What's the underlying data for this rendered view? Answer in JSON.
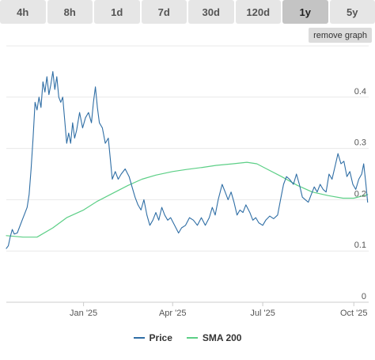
{
  "tabs": [
    {
      "label": "4h",
      "active": false
    },
    {
      "label": "8h",
      "active": false
    },
    {
      "label": "1d",
      "active": false
    },
    {
      "label": "7d",
      "active": false
    },
    {
      "label": "30d",
      "active": false
    },
    {
      "label": "120d",
      "active": false
    },
    {
      "label": "1y",
      "active": true
    },
    {
      "label": "5y",
      "active": false
    }
  ],
  "remove_graph_label": "remove graph",
  "colors": {
    "price": "#2f6ea5",
    "sma": "#5ccf86",
    "grid": "#e8e8e8"
  },
  "chart_data": {
    "type": "line",
    "x_type": "date",
    "x_ticks": [
      {
        "date": "2025-01-01",
        "label": "Jan '25"
      },
      {
        "date": "2025-04-01",
        "label": "Apr '25"
      },
      {
        "date": "2025-07-01",
        "label": "Jul '25"
      },
      {
        "date": "2025-10-01",
        "label": "Oct '25"
      }
    ],
    "y_ticks": [
      0,
      0.1,
      0.2,
      0.3,
      0.4
    ],
    "y_tick_labels": [
      "0",
      "0.1",
      "0.2",
      "0.3",
      "0.4"
    ],
    "xlim": [
      "2024-10-15",
      "2025-10-16"
    ],
    "ylim": [
      0,
      0.5
    ],
    "y_axis_side": "right",
    "grid": true,
    "legend_position": "bottom",
    "series": [
      {
        "name": "Price",
        "color": "#2f6ea5",
        "points": [
          [
            "2024-10-15",
            0.105
          ],
          [
            "2024-10-17",
            0.11
          ],
          [
            "2024-10-19",
            0.128
          ],
          [
            "2024-10-21",
            0.142
          ],
          [
            "2024-10-23",
            0.133
          ],
          [
            "2024-10-26",
            0.135
          ],
          [
            "2024-10-28",
            0.145
          ],
          [
            "2024-10-31",
            0.16
          ],
          [
            "2024-11-03",
            0.175
          ],
          [
            "2024-11-05",
            0.185
          ],
          [
            "2024-11-07",
            0.21
          ],
          [
            "2024-11-09",
            0.26
          ],
          [
            "2024-11-11",
            0.32
          ],
          [
            "2024-11-13",
            0.39
          ],
          [
            "2024-11-15",
            0.375
          ],
          [
            "2024-11-17",
            0.4
          ],
          [
            "2024-11-19",
            0.38
          ],
          [
            "2024-11-21",
            0.43
          ],
          [
            "2024-11-23",
            0.41
          ],
          [
            "2024-11-25",
            0.44
          ],
          [
            "2024-11-27",
            0.405
          ],
          [
            "2024-11-29",
            0.425
          ],
          [
            "2024-12-01",
            0.45
          ],
          [
            "2024-12-03",
            0.415
          ],
          [
            "2024-12-05",
            0.44
          ],
          [
            "2024-12-07",
            0.4
          ],
          [
            "2024-12-09",
            0.39
          ],
          [
            "2024-12-11",
            0.4
          ],
          [
            "2024-12-13",
            0.355
          ],
          [
            "2024-12-15",
            0.31
          ],
          [
            "2024-12-17",
            0.33
          ],
          [
            "2024-12-19",
            0.31
          ],
          [
            "2024-12-21",
            0.35
          ],
          [
            "2024-12-23",
            0.32
          ],
          [
            "2024-12-25",
            0.335
          ],
          [
            "2024-12-28",
            0.37
          ],
          [
            "2024-12-31",
            0.34
          ],
          [
            "2025-01-03",
            0.36
          ],
          [
            "2025-01-06",
            0.37
          ],
          [
            "2025-01-09",
            0.35
          ],
          [
            "2025-01-11",
            0.39
          ],
          [
            "2025-01-13",
            0.42
          ],
          [
            "2025-01-15",
            0.38
          ],
          [
            "2025-01-17",
            0.35
          ],
          [
            "2025-01-20",
            0.34
          ],
          [
            "2025-01-23",
            0.31
          ],
          [
            "2025-01-26",
            0.32
          ],
          [
            "2025-01-28",
            0.28
          ],
          [
            "2025-01-30",
            0.24
          ],
          [
            "2025-02-02",
            0.255
          ],
          [
            "2025-02-05",
            0.24
          ],
          [
            "2025-02-08",
            0.25
          ],
          [
            "2025-02-12",
            0.26
          ],
          [
            "2025-02-16",
            0.245
          ],
          [
            "2025-02-19",
            0.225
          ],
          [
            "2025-02-22",
            0.205
          ],
          [
            "2025-02-25",
            0.19
          ],
          [
            "2025-02-28",
            0.18
          ],
          [
            "2025-03-03",
            0.2
          ],
          [
            "2025-03-06",
            0.17
          ],
          [
            "2025-03-09",
            0.15
          ],
          [
            "2025-03-12",
            0.16
          ],
          [
            "2025-03-15",
            0.175
          ],
          [
            "2025-03-18",
            0.16
          ],
          [
            "2025-03-21",
            0.185
          ],
          [
            "2025-03-24",
            0.17
          ],
          [
            "2025-03-27",
            0.16
          ],
          [
            "2025-03-30",
            0.165
          ],
          [
            "2025-04-03",
            0.15
          ],
          [
            "2025-04-07",
            0.135
          ],
          [
            "2025-04-10",
            0.145
          ],
          [
            "2025-04-14",
            0.15
          ],
          [
            "2025-04-18",
            0.165
          ],
          [
            "2025-04-22",
            0.16
          ],
          [
            "2025-04-26",
            0.15
          ],
          [
            "2025-04-30",
            0.165
          ],
          [
            "2025-05-04",
            0.15
          ],
          [
            "2025-05-08",
            0.165
          ],
          [
            "2025-05-11",
            0.185
          ],
          [
            "2025-05-14",
            0.17
          ],
          [
            "2025-05-17",
            0.2
          ],
          [
            "2025-05-21",
            0.23
          ],
          [
            "2025-05-24",
            0.215
          ],
          [
            "2025-05-27",
            0.2
          ],
          [
            "2025-05-30",
            0.215
          ],
          [
            "2025-06-02",
            0.195
          ],
          [
            "2025-06-05",
            0.17
          ],
          [
            "2025-06-08",
            0.18
          ],
          [
            "2025-06-11",
            0.175
          ],
          [
            "2025-06-14",
            0.19
          ],
          [
            "2025-06-18",
            0.175
          ],
          [
            "2025-06-21",
            0.16
          ],
          [
            "2025-06-24",
            0.165
          ],
          [
            "2025-06-27",
            0.155
          ],
          [
            "2025-07-01",
            0.15
          ],
          [
            "2025-07-04",
            0.16
          ],
          [
            "2025-07-08",
            0.168
          ],
          [
            "2025-07-12",
            0.163
          ],
          [
            "2025-07-16",
            0.17
          ],
          [
            "2025-07-19",
            0.2
          ],
          [
            "2025-07-22",
            0.23
          ],
          [
            "2025-07-25",
            0.245
          ],
          [
            "2025-07-28",
            0.24
          ],
          [
            "2025-08-01",
            0.23
          ],
          [
            "2025-08-04",
            0.25
          ],
          [
            "2025-08-07",
            0.23
          ],
          [
            "2025-08-10",
            0.205
          ],
          [
            "2025-08-13",
            0.2
          ],
          [
            "2025-08-16",
            0.195
          ],
          [
            "2025-08-19",
            0.21
          ],
          [
            "2025-08-22",
            0.225
          ],
          [
            "2025-08-25",
            0.215
          ],
          [
            "2025-08-28",
            0.23
          ],
          [
            "2025-08-31",
            0.22
          ],
          [
            "2025-09-03",
            0.215
          ],
          [
            "2025-09-06",
            0.25
          ],
          [
            "2025-09-09",
            0.24
          ],
          [
            "2025-09-12",
            0.265
          ],
          [
            "2025-09-15",
            0.29
          ],
          [
            "2025-09-18",
            0.27
          ],
          [
            "2025-09-21",
            0.275
          ],
          [
            "2025-09-24",
            0.245
          ],
          [
            "2025-09-27",
            0.255
          ],
          [
            "2025-09-30",
            0.23
          ],
          [
            "2025-10-03",
            0.22
          ],
          [
            "2025-10-06",
            0.24
          ],
          [
            "2025-10-09",
            0.25
          ],
          [
            "2025-10-11",
            0.27
          ],
          [
            "2025-10-13",
            0.235
          ],
          [
            "2025-10-15",
            0.195
          ]
        ]
      },
      {
        "name": "SMA 200",
        "color": "#5ccf86",
        "points": [
          [
            "2024-10-15",
            0.13
          ],
          [
            "2024-11-01",
            0.127
          ],
          [
            "2024-11-15",
            0.127
          ],
          [
            "2024-12-01",
            0.145
          ],
          [
            "2024-12-15",
            0.165
          ],
          [
            "2025-01-01",
            0.18
          ],
          [
            "2025-01-15",
            0.197
          ],
          [
            "2025-02-01",
            0.214
          ],
          [
            "2025-02-15",
            0.228
          ],
          [
            "2025-03-01",
            0.24
          ],
          [
            "2025-03-15",
            0.248
          ],
          [
            "2025-04-01",
            0.255
          ],
          [
            "2025-04-15",
            0.259
          ],
          [
            "2025-05-01",
            0.263
          ],
          [
            "2025-05-15",
            0.267
          ],
          [
            "2025-06-01",
            0.27
          ],
          [
            "2025-06-15",
            0.273
          ],
          [
            "2025-06-25",
            0.27
          ],
          [
            "2025-07-05",
            0.26
          ],
          [
            "2025-07-20",
            0.245
          ],
          [
            "2025-08-05",
            0.228
          ],
          [
            "2025-08-20",
            0.215
          ],
          [
            "2025-09-05",
            0.208
          ],
          [
            "2025-09-20",
            0.203
          ],
          [
            "2025-10-01",
            0.203
          ],
          [
            "2025-10-15",
            0.21
          ]
        ]
      }
    ]
  }
}
